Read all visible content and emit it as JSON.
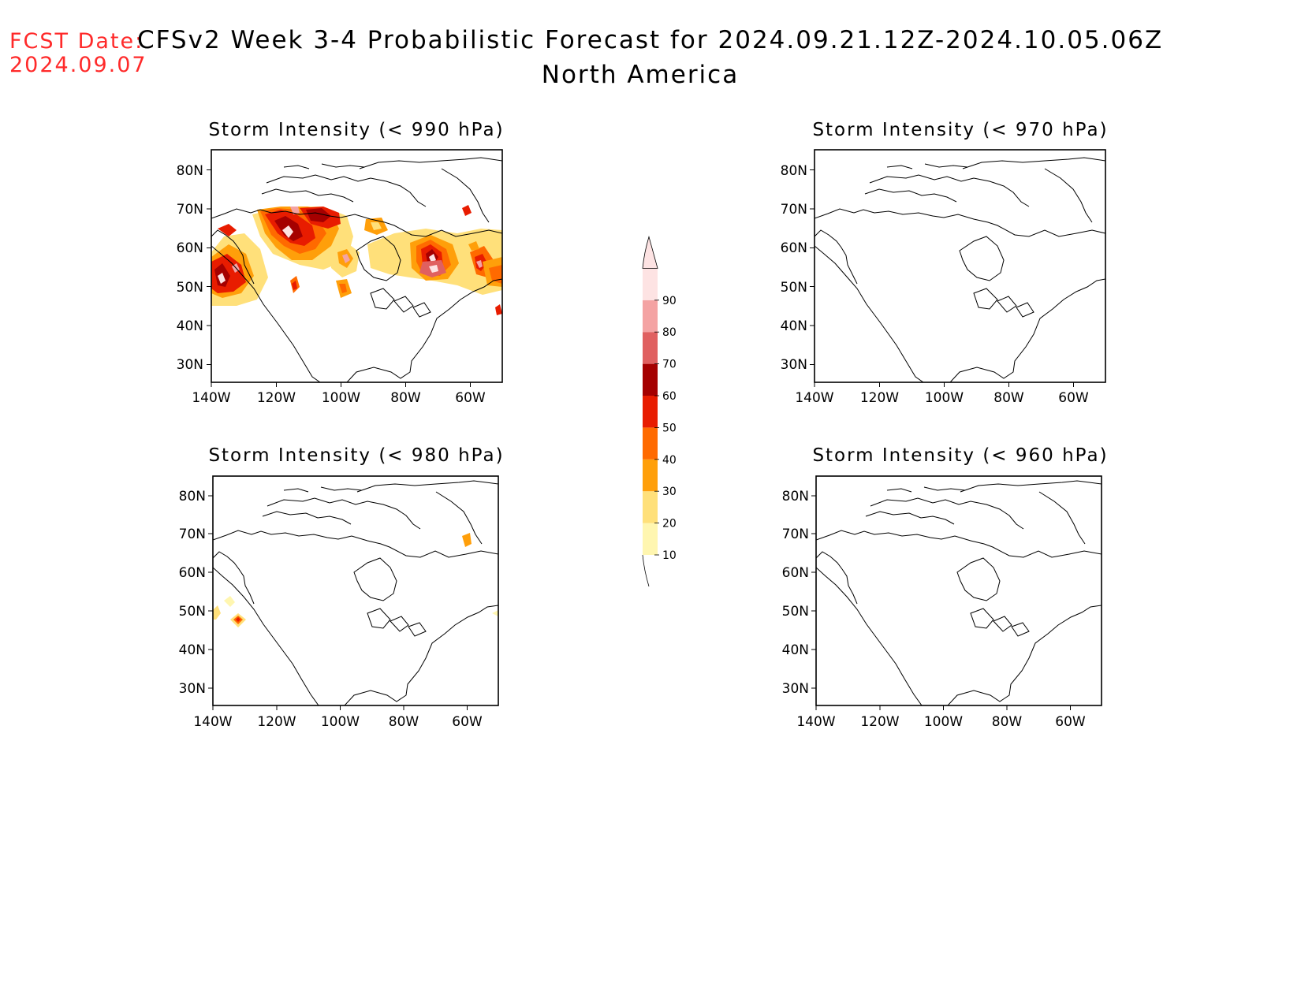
{
  "header": {
    "fcst_label": "FCST Date:",
    "fcst_date": "2024.09.07",
    "title": "CFSv2 Week 3-4 Probabilistic Forecast for 2024.09.21.12Z-2024.10.05.06Z",
    "region": "North America"
  },
  "colors": {
    "text": "#000000",
    "fcst": "#ff2a2a",
    "coast": "#000000"
  },
  "lat_labels": [
    "30N",
    "40N",
    "50N",
    "60N",
    "70N",
    "80N"
  ],
  "lon_labels": [
    "140W",
    "120W",
    "100W",
    "80W",
    "60W"
  ],
  "panels": [
    {
      "id": "p990",
      "title": "Storm Intensity (< 990 hPa)"
    },
    {
      "id": "p970",
      "title": "Storm Intensity (< 970 hPa)"
    },
    {
      "id": "p980",
      "title": "Storm Intensity (< 980 hPa)"
    },
    {
      "id": "p960",
      "title": "Storm Intensity (< 960 hPa)"
    }
  ],
  "colorbar": {
    "levels": [
      "10",
      "20",
      "30",
      "40",
      "50",
      "60",
      "70",
      "80",
      "90"
    ],
    "colors": [
      "#fff6b0",
      "#ffe07a",
      "#ff9f0a",
      "#ff6a00",
      "#e81c00",
      "#a50000",
      "#e06060",
      "#f4a3a3",
      "#fde3e3"
    ]
  }
}
